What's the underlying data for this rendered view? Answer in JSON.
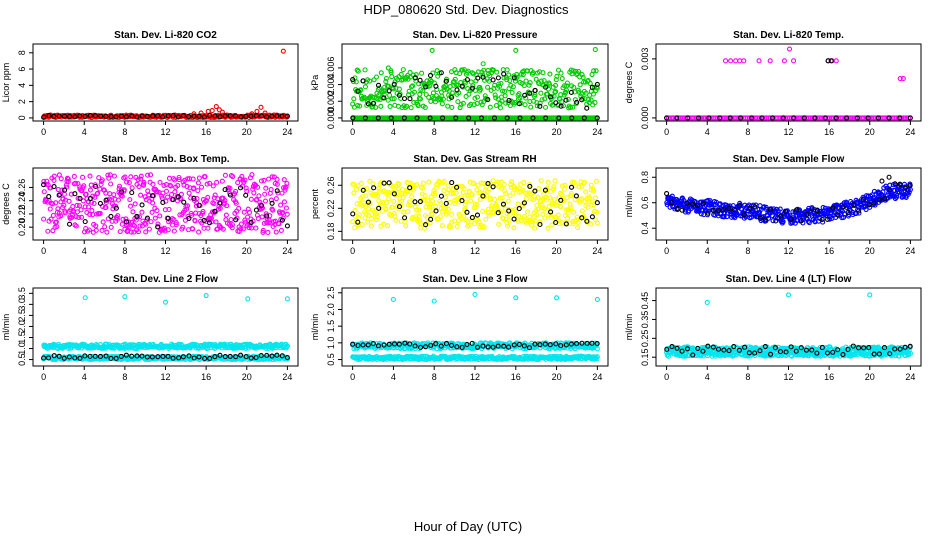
{
  "figure": {
    "title": "HDP_080620  Std. Dev. Diagnostics",
    "xlabel": "Hour of Day (UTC)"
  },
  "chart_data": [
    {
      "type": "scatter",
      "title": "Stan. Dev. Li-820 CO2",
      "ylabel": "Licor ppm",
      "xlim": [
        0,
        24
      ],
      "ylim": [
        0,
        8.7
      ],
      "xticks": [
        0,
        4,
        8,
        12,
        16,
        20,
        24
      ],
      "yticks": [
        0,
        2,
        4,
        6,
        8
      ],
      "ytick_labels": [
        "0",
        "2",
        "4",
        "6",
        "8"
      ],
      "color": "#ff0000",
      "series": [
        {
          "name": "all",
          "color": "#ff0000",
          "gen": {
            "kind": "band",
            "n": 300,
            "low": 0.05,
            "high": 0.35
          }
        },
        {
          "name": "all-bumps",
          "color": "#ff0000",
          "points": [
            [
              14.8,
              0.5
            ],
            [
              15.5,
              0.6
            ],
            [
              16.2,
              0.8
            ],
            [
              16.6,
              0.9
            ],
            [
              17.0,
              1.4
            ],
            [
              17.3,
              1.0
            ],
            [
              17.6,
              0.7
            ],
            [
              20.5,
              0.5
            ],
            [
              21.0,
              0.8
            ],
            [
              21.4,
              1.3
            ],
            [
              21.8,
              0.6
            ],
            [
              23.6,
              8.2
            ]
          ]
        },
        {
          "name": "hourly",
          "color": "#000000",
          "gen": {
            "kind": "band",
            "n": 48,
            "low": 0.1,
            "high": 0.3
          }
        }
      ]
    },
    {
      "type": "scatter",
      "title": "Stan. Dev. Li-820 Pressure",
      "ylabel": "kPa",
      "xlim": [
        0,
        24
      ],
      "ylim": [
        0,
        0.0085
      ],
      "xticks": [
        0,
        4,
        8,
        12,
        16,
        20,
        24
      ],
      "yticks": [
        0,
        0.002,
        0.004,
        0.006
      ],
      "ytick_labels": [
        "0.000",
        "0.002",
        "0.004",
        "0.006"
      ],
      "color": "#00cc00",
      "series": [
        {
          "name": "all-zero",
          "color": "#00cc00",
          "gen": {
            "kind": "band",
            "n": 160,
            "low": 0,
            "high": 0
          }
        },
        {
          "name": "all",
          "color": "#00cc00",
          "gen": {
            "kind": "band",
            "n": 420,
            "low": 0.0012,
            "high": 0.0058
          }
        },
        {
          "name": "all-high",
          "color": "#00cc00",
          "points": [
            [
              7.8,
              0.0081
            ],
            [
              16.0,
              0.0081
            ],
            [
              23.8,
              0.0082
            ],
            [
              3.5,
              0.006
            ],
            [
              12.8,
              0.0065
            ]
          ]
        },
        {
          "name": "hourly",
          "color": "#000000",
          "gen": {
            "kind": "band",
            "n": 48,
            "low": 0.001,
            "high": 0.0055
          }
        },
        {
          "name": "hourly-zero",
          "color": "#000000",
          "gen": {
            "kind": "band",
            "n": 20,
            "low": 0,
            "high": 0
          }
        }
      ]
    },
    {
      "type": "scatter",
      "title": "Stan. Dev. Li-820 Temp.",
      "ylabel": "degrees C",
      "xlim": [
        0,
        24
      ],
      "ylim": [
        0,
        0.0036
      ],
      "xticks": [
        0,
        4,
        8,
        12,
        16,
        20,
        24
      ],
      "yticks": [
        0,
        0.003
      ],
      "ytick_labels": [
        "0.000",
        "0.003"
      ],
      "color": "#ff00ff",
      "series": [
        {
          "name": "all-zero",
          "color": "#ff00ff",
          "gen": {
            "kind": "band",
            "n": 140,
            "low": 0,
            "high": 0
          }
        },
        {
          "name": "all",
          "color": "#ff00ff",
          "points": [
            [
              5.8,
              0.0029
            ],
            [
              6.3,
              0.0029
            ],
            [
              6.8,
              0.0029
            ],
            [
              7.2,
              0.0029
            ],
            [
              7.6,
              0.0029
            ],
            [
              9.1,
              0.0029
            ],
            [
              10.2,
              0.0029
            ],
            [
              11.6,
              0.0029
            ],
            [
              12.1,
              0.0035
            ],
            [
              12.5,
              0.0029
            ],
            [
              15.9,
              0.0029
            ],
            [
              16.3,
              0.0029
            ],
            [
              16.7,
              0.0029
            ],
            [
              23.0,
              0.002
            ],
            [
              23.3,
              0.002
            ]
          ]
        },
        {
          "name": "hourly",
          "color": "#000000",
          "points": [
            [
              15.9,
              0.0029
            ],
            [
              16.2,
              0.0029
            ]
          ]
        },
        {
          "name": "hourly-zero",
          "color": "#000000",
          "gen": {
            "kind": "band",
            "n": 24,
            "low": 0,
            "high": 0
          }
        }
      ]
    },
    {
      "type": "scatter",
      "title": "Stan. Dev. Amb. Box Temp.",
      "ylabel": "degrees C",
      "xlim": [
        0,
        24
      ],
      "ylim": [
        0.185,
        0.285
      ],
      "xticks": [
        0,
        4,
        8,
        12,
        16,
        20,
        24
      ],
      "yticks": [
        0.2,
        0.22,
        0.24,
        0.26
      ],
      "ytick_labels": [
        "0.20",
        "0.22",
        "0.24",
        "0.26"
      ],
      "color": "#ff00ff",
      "series": [
        {
          "name": "all",
          "color": "#ff00ff",
          "gen": {
            "kind": "band",
            "n": 520,
            "low": 0.192,
            "high": 0.28
          }
        },
        {
          "name": "hourly",
          "color": "#000000",
          "gen": {
            "kind": "band",
            "n": 48,
            "low": 0.2,
            "high": 0.265
          }
        }
      ]
    },
    {
      "type": "scatter",
      "title": "Stan. Dev. Gas Stream RH",
      "ylabel": "percent",
      "xlim": [
        0,
        24
      ],
      "ylim": [
        0.17,
        0.285
      ],
      "xticks": [
        0,
        4,
        8,
        12,
        16,
        20,
        24
      ],
      "yticks": [
        0.18,
        0.22,
        0.26
      ],
      "ytick_labels": [
        "0.18",
        "0.22",
        "0.26"
      ],
      "color": "#ffff00",
      "series": [
        {
          "name": "all",
          "color": "#ffff00",
          "gen": {
            "kind": "band",
            "n": 500,
            "low": 0.185,
            "high": 0.268
          }
        },
        {
          "name": "hourly",
          "color": "#000000",
          "gen": {
            "kind": "band",
            "n": 48,
            "low": 0.19,
            "high": 0.265
          }
        }
      ]
    },
    {
      "type": "scatter",
      "title": "Stan. Dev. Sample Flow",
      "ylabel": "ml/min",
      "xlim": [
        0,
        24
      ],
      "ylim": [
        0.33,
        0.85
      ],
      "xticks": [
        0,
        4,
        8,
        12,
        16,
        20,
        24
      ],
      "yticks": [
        0.4,
        0.6,
        0.8
      ],
      "ytick_labels": [
        "0.4",
        "0.6",
        "0.8"
      ],
      "color": "#0000ff",
      "series": [
        {
          "name": "all",
          "color": "#0000ff",
          "gen": {
            "kind": "curve",
            "n": 520,
            "spread": 0.06,
            "knots": [
              [
                0,
                0.6
              ],
              [
                4,
                0.56
              ],
              [
                8,
                0.53
              ],
              [
                12,
                0.49
              ],
              [
                16,
                0.51
              ],
              [
                19,
                0.58
              ],
              [
                22,
                0.69
              ],
              [
                24,
                0.7
              ]
            ]
          }
        },
        {
          "name": "hourly",
          "color": "#000000",
          "gen": {
            "kind": "curve",
            "n": 48,
            "spread": 0.05,
            "knots": [
              [
                0,
                0.6
              ],
              [
                4,
                0.56
              ],
              [
                8,
                0.53
              ],
              [
                12,
                0.49
              ],
              [
                16,
                0.51
              ],
              [
                19,
                0.58
              ],
              [
                22,
                0.7
              ],
              [
                24,
                0.7
              ]
            ]
          }
        },
        {
          "name": "hourly-high",
          "color": "#000000",
          "points": [
            [
              21.9,
              0.8
            ],
            [
              21.2,
              0.77
            ]
          ]
        }
      ]
    },
    {
      "type": "scatter",
      "title": "Stan. Dev. Line 2 Flow",
      "ylabel": "ml/min",
      "xlim": [
        0,
        24
      ],
      "ylim": [
        0.35,
        3.6
      ],
      "xticks": [
        0,
        4,
        8,
        12,
        16,
        20,
        24
      ],
      "yticks": [
        0.5,
        1.0,
        1.5,
        2.0,
        2.5,
        3.0,
        3.5
      ],
      "ytick_labels": [
        "0.5",
        "1.0",
        "1.5",
        "2.0",
        "2.5",
        "3.0",
        "3.5"
      ],
      "color": "#00e5ee",
      "series": [
        {
          "name": "all-high",
          "color": "#00e5ee",
          "gen": {
            "kind": "band",
            "n": 380,
            "low": 1.0,
            "high": 1.2
          }
        },
        {
          "name": "all-low",
          "color": "#00e5ee",
          "gen": {
            "kind": "band",
            "n": 380,
            "low": 0.5,
            "high": 0.65
          }
        },
        {
          "name": "all-outliers",
          "color": "#00e5ee",
          "points": [
            [
              4.1,
              3.3
            ],
            [
              8.0,
              3.35
            ],
            [
              12.0,
              3.1
            ],
            [
              16.0,
              3.4
            ],
            [
              20.1,
              3.25
            ],
            [
              24.0,
              3.25
            ]
          ]
        },
        {
          "name": "hourly",
          "color": "#000000",
          "gen": {
            "kind": "band",
            "n": 48,
            "low": 0.55,
            "high": 0.7
          }
        }
      ]
    },
    {
      "type": "scatter",
      "title": "Stan. Dev. Line 3 Flow",
      "ylabel": "ml/min",
      "xlim": [
        0,
        24
      ],
      "ylim": [
        0.4,
        2.55
      ],
      "xticks": [
        0,
        4,
        8,
        12,
        16,
        20,
        24
      ],
      "yticks": [
        0.5,
        1.0,
        1.5,
        2.0,
        2.5
      ],
      "ytick_labels": [
        "0.5",
        "1.0",
        "1.5",
        "2.0",
        "2.5"
      ],
      "color": "#00e5ee",
      "series": [
        {
          "name": "all-high",
          "color": "#00e5ee",
          "gen": {
            "kind": "band",
            "n": 380,
            "low": 0.82,
            "high": 1.0
          }
        },
        {
          "name": "all-low",
          "color": "#00e5ee",
          "gen": {
            "kind": "band",
            "n": 380,
            "low": 0.5,
            "high": 0.6
          }
        },
        {
          "name": "all-outliers",
          "color": "#00e5ee",
          "points": [
            [
              4.0,
              2.3
            ],
            [
              8.0,
              2.25
            ],
            [
              12.0,
              2.45
            ],
            [
              16.0,
              2.35
            ],
            [
              20.0,
              2.35
            ],
            [
              24.0,
              2.3
            ]
          ]
        },
        {
          "name": "hourly",
          "color": "#000000",
          "gen": {
            "kind": "band",
            "n": 48,
            "low": 0.85,
            "high": 1.0
          }
        }
      ]
    },
    {
      "type": "scatter",
      "title": "Stan. Dev. Line 4 (LT) Flow",
      "ylabel": "ml/min",
      "xlim": [
        0,
        24
      ],
      "ylim": [
        0.12,
        0.5
      ],
      "xticks": [
        0,
        4,
        8,
        12,
        16,
        20,
        24
      ],
      "yticks": [
        0.15,
        0.25,
        0.35,
        0.45
      ],
      "ytick_labels": [
        "0.15",
        "0.25",
        "0.35",
        "0.45"
      ],
      "color": "#00e5ee",
      "series": [
        {
          "name": "all",
          "color": "#00e5ee",
          "gen": {
            "kind": "band",
            "n": 620,
            "low": 0.155,
            "high": 0.205
          }
        },
        {
          "name": "all-outliers",
          "color": "#00e5ee",
          "points": [
            [
              4.0,
              0.44
            ],
            [
              12.0,
              0.48
            ],
            [
              20.0,
              0.48
            ]
          ]
        },
        {
          "name": "hourly",
          "color": "#000000",
          "gen": {
            "kind": "band",
            "n": 48,
            "low": 0.16,
            "high": 0.21
          }
        }
      ]
    }
  ]
}
